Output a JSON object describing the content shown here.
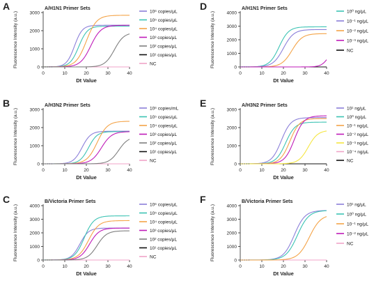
{
  "colors": {
    "purple": "#8B7FD9",
    "teal": "#3CC3B4",
    "orange": "#F4A347",
    "magenta": "#BF1AB8",
    "gray": "#7F7F7F",
    "black": "#111111",
    "pink": "#F0A3C8",
    "yellow": "#F5E640"
  },
  "chart_data": [
    {
      "type": "line",
      "letter": "A",
      "title": "A/H1N1 Primer Sets",
      "xlabel": "Dt Value",
      "ylabel": "Fluorescence Intensity (a.u.)",
      "xlim": [
        0,
        40
      ],
      "ylim": [
        0,
        3000
      ],
      "xticks": [
        "0",
        "10",
        "20",
        "30",
        "40"
      ],
      "yticks": [
        "0",
        "1000",
        "2000",
        "3000"
      ],
      "grid": false,
      "legend": "right",
      "series": [
        {
          "name": "10⁶ copies/μL",
          "color": "purple",
          "amp": 2300,
          "mid": 14.5,
          "k": 0.55
        },
        {
          "name": "10⁵ copies/μL",
          "color": "teal",
          "amp": 2250,
          "mid": 16.5,
          "k": 0.5
        },
        {
          "name": "10⁴ copies/μL",
          "color": "orange",
          "amp": 2850,
          "mid": 20,
          "k": 0.42
        },
        {
          "name": "10³ copies/μL",
          "color": "magenta",
          "amp": 2300,
          "mid": 22,
          "k": 0.42
        },
        {
          "name": "10² copies/μL",
          "color": "gray",
          "amp": 1900,
          "mid": 33,
          "k": 0.45
        },
        {
          "name": "10¹ copies/μL",
          "color": "black",
          "amp": 0,
          "mid": 0,
          "k": 0
        },
        {
          "name": "NC",
          "color": "pink",
          "amp": 0,
          "mid": 0,
          "k": 0
        }
      ]
    },
    {
      "type": "line",
      "letter": "B",
      "title": "A/H3N2 Primer Sets",
      "xlabel": "Dt Value",
      "ylabel": "Fluorescence Intensity (a.u.)",
      "xlim": [
        0,
        40
      ],
      "ylim": [
        0,
        3000
      ],
      "xticks": [
        "0",
        "10",
        "20",
        "30",
        "40"
      ],
      "yticks": [
        "0",
        "1000",
        "2000",
        "3000"
      ],
      "grid": false,
      "legend": "right",
      "series": [
        {
          "name": "10⁶ copies/mL",
          "color": "purple",
          "amp": 1800,
          "mid": 18,
          "k": 0.5
        },
        {
          "name": "10⁵ copies/μL",
          "color": "teal",
          "amp": 1780,
          "mid": 21,
          "k": 0.5
        },
        {
          "name": "10⁴ copies/μL",
          "color": "orange",
          "amp": 2350,
          "mid": 25,
          "k": 0.42
        },
        {
          "name": "10³ copies/μL",
          "color": "magenta",
          "amp": 1780,
          "mid": 27,
          "k": 0.42
        },
        {
          "name": "10² copies/μL",
          "color": "gray",
          "amp": 1500,
          "mid": 35,
          "k": 0.45
        },
        {
          "name": "10¹ copies/μL",
          "color": "black",
          "amp": 0,
          "mid": 0,
          "k": 0
        },
        {
          "name": "NC",
          "color": "pink",
          "amp": 0,
          "mid": 0,
          "k": 0
        }
      ]
    },
    {
      "type": "line",
      "letter": "C",
      "title": "B/Victoria Primer Sets",
      "xlabel": "Dt Value",
      "ylabel": "Fluorescence Intensity (a.u.)",
      "xlim": [
        0,
        40
      ],
      "ylim": [
        0,
        4000
      ],
      "xticks": [
        "0",
        "10",
        "20",
        "30",
        "40"
      ],
      "yticks": [
        "0",
        "1000",
        "2000",
        "3000",
        "4000"
      ],
      "grid": false,
      "legend": "right",
      "series": [
        {
          "name": "10⁶ copies/μL",
          "color": "purple",
          "amp": 2350,
          "mid": 17,
          "k": 0.5
        },
        {
          "name": "10⁵ copies/μL",
          "color": "teal",
          "amp": 3250,
          "mid": 19,
          "k": 0.45
        },
        {
          "name": "10⁴ copies/μL",
          "color": "orange",
          "amp": 2900,
          "mid": 21,
          "k": 0.42
        },
        {
          "name": "10³ copies/μL",
          "color": "magenta",
          "amp": 2350,
          "mid": 21.5,
          "k": 0.45
        },
        {
          "name": "10² copies/μL",
          "color": "gray",
          "amp": 2150,
          "mid": 25,
          "k": 0.45
        },
        {
          "name": "10¹ copies/μL",
          "color": "black",
          "amp": 0,
          "mid": 0,
          "k": 0
        },
        {
          "name": "NC",
          "color": "pink",
          "amp": 0,
          "mid": 0,
          "k": 0
        }
      ]
    },
    {
      "type": "line",
      "letter": "D",
      "title": "A/H1N1 Primer Sets",
      "xlabel": "Dt Value",
      "ylabel": "Fluorescence Intensity (a.u.)",
      "xlim": [
        0,
        40
      ],
      "ylim": [
        0,
        4000
      ],
      "xticks": [
        "0",
        "10",
        "20",
        "30",
        "40"
      ],
      "yticks": [
        "0",
        "1000",
        "2000",
        "3000",
        "4000"
      ],
      "grid": false,
      "legend": "right",
      "series": [
        {
          "name": "10⁰ ng/μL",
          "color": "teal",
          "amp": 2950,
          "mid": 18,
          "k": 0.45
        },
        {
          "name": "10⁻¹ ng/μL",
          "color": "purple",
          "amp": 2750,
          "mid": 20,
          "k": 0.42
        },
        {
          "name": "10⁻² ng/μL",
          "color": "orange",
          "amp": 2450,
          "mid": 24,
          "k": 0.42
        },
        {
          "name": "10⁻³ ng/μL",
          "color": "magenta",
          "amp": 1500,
          "mid": 41,
          "k": 0.6
        },
        {
          "name": "NC",
          "color": "black",
          "amp": 0,
          "mid": 0,
          "k": 0
        }
      ]
    },
    {
      "type": "line",
      "letter": "E",
      "title": "A/H3N2 Primer Sets",
      "xlabel": "Dt Value",
      "ylabel": "Fluorescence Intensity (a.u.)",
      "xlim": [
        0,
        40
      ],
      "ylim": [
        0,
        3000
      ],
      "xticks": [
        "0",
        "10",
        "20",
        "30",
        "40"
      ],
      "yticks": [
        "0",
        "1000",
        "2000",
        "3000"
      ],
      "grid": false,
      "legend": "right",
      "series": [
        {
          "name": "10¹ ng/μL",
          "color": "purple",
          "amp": 2550,
          "mid": 19,
          "k": 0.45
        },
        {
          "name": "10⁰ ng/μL",
          "color": "teal",
          "amp": 2300,
          "mid": 21,
          "k": 0.45
        },
        {
          "name": "10⁻¹ ng/μL",
          "color": "orange",
          "amp": 2500,
          "mid": 23,
          "k": 0.45
        },
        {
          "name": "10⁻² ng/μL",
          "color": "magenta",
          "amp": 2650,
          "mid": 25,
          "k": 0.45
        },
        {
          "name": "10⁻³ ng/μL",
          "color": "yellow",
          "amp": 1850,
          "mid": 31.5,
          "k": 0.45
        },
        {
          "name": "10⁻⁴ ng/μL",
          "color": "pink",
          "amp": 0,
          "mid": 0,
          "k": 0
        },
        {
          "name": "NC",
          "color": "black",
          "amp": 0,
          "mid": 0,
          "k": 0
        }
      ]
    },
    {
      "type": "line",
      "letter": "F",
      "title": "B/Victoria Primer Sets",
      "xlabel": "Dt Value",
      "ylabel": "Fluorescence Intensity (a.u.)",
      "xlim": [
        0,
        40
      ],
      "ylim": [
        0,
        4000
      ],
      "xticks": [
        "0",
        "10",
        "20",
        "30",
        "40"
      ],
      "yticks": [
        "0",
        "1000",
        "2000",
        "3000",
        "4000"
      ],
      "grid": false,
      "legend": "right",
      "series": [
        {
          "name": "10¹ ng/μL",
          "color": "purple",
          "amp": 3650,
          "mid": 25,
          "k": 0.4
        },
        {
          "name": "10⁰ ng/μL",
          "color": "teal",
          "amp": 3650,
          "mid": 26.5,
          "k": 0.38
        },
        {
          "name": "10⁻¹ ng/μL",
          "color": "orange",
          "amp": 3350,
          "mid": 32,
          "k": 0.38
        },
        {
          "name": "10⁻² ng/μL",
          "color": "magenta",
          "amp": 0,
          "mid": 0,
          "k": 0
        },
        {
          "name": "NC",
          "color": "pink",
          "amp": 0,
          "mid": 0,
          "k": 0
        }
      ]
    }
  ]
}
